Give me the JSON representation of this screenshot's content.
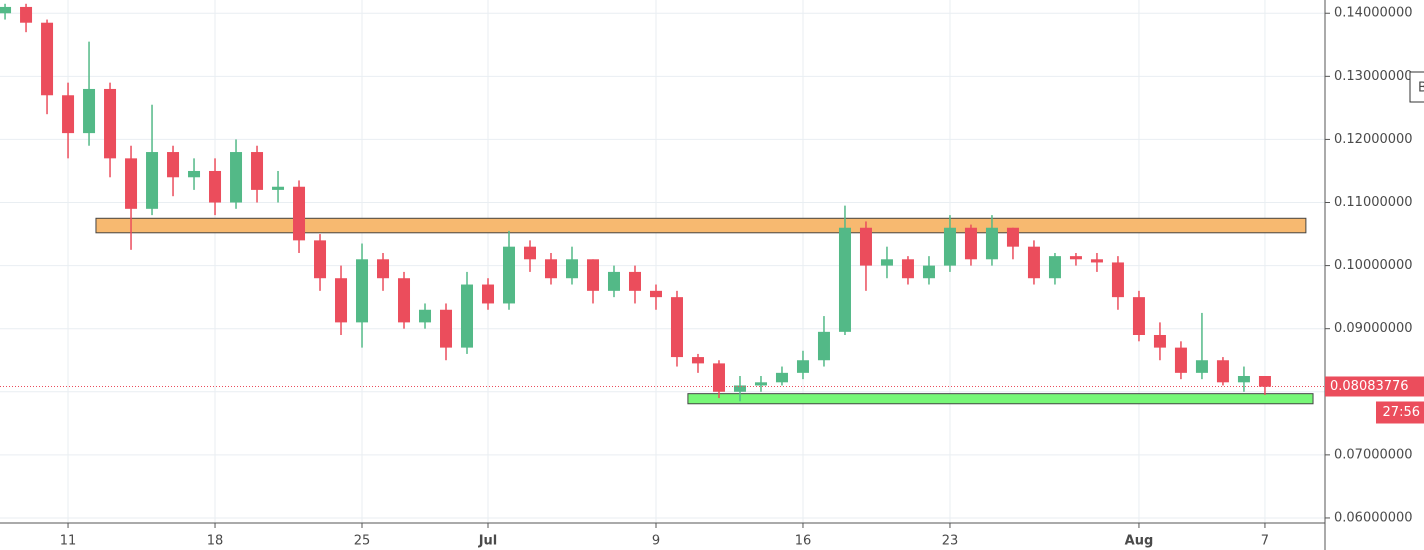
{
  "chart_data": {
    "type": "candlestick",
    "x": [
      -3,
      -2,
      -1,
      0,
      1,
      2,
      3,
      4,
      5,
      6,
      7,
      8,
      9,
      10,
      11,
      12,
      13,
      14,
      15,
      16,
      17,
      18,
      19,
      20,
      21,
      22,
      23,
      24,
      25,
      26,
      27,
      28,
      29,
      30,
      31,
      32,
      33,
      34,
      35,
      36,
      37,
      38,
      39,
      40,
      41,
      42,
      43,
      44,
      45,
      46,
      47,
      48,
      49,
      50,
      51,
      52,
      53,
      54,
      55,
      56,
      57
    ],
    "open": [
      0.14,
      0.141,
      0.1385,
      0.127,
      0.121,
      0.128,
      0.117,
      0.109,
      0.118,
      0.114,
      0.115,
      0.11,
      0.118,
      0.112,
      0.1125,
      0.104,
      0.098,
      0.091,
      0.101,
      0.098,
      0.091,
      0.093,
      0.087,
      0.097,
      0.094,
      0.103,
      0.101,
      0.098,
      0.101,
      0.096,
      0.099,
      0.096,
      0.095,
      0.0855,
      0.0845,
      0.08,
      0.081,
      0.0815,
      0.083,
      0.085,
      0.0895,
      0.106,
      0.1,
      0.101,
      0.098,
      0.1,
      0.106,
      0.101,
      0.106,
      0.103,
      0.098,
      0.1015,
      0.101,
      0.1005,
      0.095,
      0.089,
      0.087,
      0.083,
      0.085,
      0.0815,
      0.0825
    ],
    "high": [
      0.1415,
      0.1415,
      0.139,
      0.129,
      0.1355,
      0.129,
      0.119,
      0.1255,
      0.119,
      0.117,
      0.117,
      0.12,
      0.119,
      0.115,
      0.1135,
      0.105,
      0.1,
      0.1035,
      0.102,
      0.099,
      0.094,
      0.094,
      0.099,
      0.098,
      0.1055,
      0.104,
      0.102,
      0.103,
      0.101,
      0.1,
      0.1,
      0.097,
      0.096,
      0.086,
      0.085,
      0.0825,
      0.0825,
      0.084,
      0.0865,
      0.092,
      0.1095,
      0.107,
      0.103,
      0.1015,
      0.1015,
      0.108,
      0.1065,
      0.108,
      0.106,
      0.104,
      0.102,
      0.102,
      0.102,
      0.1015,
      0.096,
      0.091,
      0.088,
      0.0925,
      0.0855,
      0.084,
      0.0825
    ],
    "low": [
      0.139,
      0.137,
      0.124,
      0.117,
      0.119,
      0.114,
      0.1025,
      0.108,
      0.111,
      0.112,
      0.108,
      0.109,
      0.11,
      0.11,
      0.102,
      0.096,
      0.089,
      0.087,
      0.096,
      0.09,
      0.09,
      0.085,
      0.086,
      0.093,
      0.093,
      0.099,
      0.097,
      0.097,
      0.094,
      0.095,
      0.094,
      0.093,
      0.084,
      0.083,
      0.079,
      0.0785,
      0.08,
      0.081,
      0.082,
      0.084,
      0.089,
      0.096,
      0.098,
      0.097,
      0.097,
      0.099,
      0.1,
      0.1,
      0.101,
      0.097,
      0.097,
      0.1,
      0.099,
      0.093,
      0.088,
      0.085,
      0.082,
      0.082,
      0.081,
      0.08,
      0.0795
    ],
    "close": [
      0.141,
      0.1385,
      0.127,
      0.121,
      0.128,
      0.117,
      0.109,
      0.118,
      0.114,
      0.115,
      0.11,
      0.118,
      0.112,
      0.1125,
      0.104,
      0.098,
      0.091,
      0.101,
      0.098,
      0.091,
      0.093,
      0.087,
      0.097,
      0.094,
      0.103,
      0.101,
      0.098,
      0.101,
      0.096,
      0.099,
      0.096,
      0.095,
      0.0855,
      0.0845,
      0.08,
      0.081,
      0.0815,
      0.083,
      0.085,
      0.0895,
      0.106,
      0.1,
      0.101,
      0.098,
      0.1,
      0.106,
      0.101,
      0.106,
      0.103,
      0.098,
      0.1015,
      0.101,
      0.1005,
      0.095,
      0.089,
      0.087,
      0.083,
      0.085,
      0.0815,
      0.0825,
      0.0808
    ],
    "up_color": "#53b987",
    "down_color": "#eb4d5c",
    "xlim": [
      -3.24,
      59.86
    ],
    "ylim": [
      0.0592,
      0.1421
    ],
    "xticks": [
      {
        "value": 0,
        "label": "11"
      },
      {
        "value": 7,
        "label": "18"
      },
      {
        "value": 14,
        "label": "25"
      },
      {
        "value": 20,
        "label": "Jul"
      },
      {
        "value": 28,
        "label": "9"
      },
      {
        "value": 35,
        "label": "16"
      },
      {
        "value": 42,
        "label": "23"
      },
      {
        "value": 51,
        "label": "Aug"
      },
      {
        "value": 57,
        "label": "7"
      }
    ],
    "yticks": [
      {
        "value": 0.06,
        "label": "0.06000000"
      },
      {
        "value": 0.07,
        "label": "0.07000000"
      },
      {
        "value": 0.08,
        "label": "0.08000000"
      },
      {
        "value": 0.09,
        "label": "0.09000000"
      },
      {
        "value": 0.1,
        "label": "0.10000000"
      },
      {
        "value": 0.11,
        "label": "0.11000000"
      },
      {
        "value": 0.12,
        "label": "0.12000000"
      },
      {
        "value": 0.13,
        "label": "0.13000000"
      },
      {
        "value": 0.14,
        "label": "0.14000000"
      }
    ],
    "grid": true,
    "last_price": 0.08083776,
    "countdown": "27:56",
    "button_label": "B",
    "zones": [
      {
        "x": [
          1.33,
          58.95
        ],
        "y": [
          0.1052,
          0.1075
        ],
        "color": "#f7b970"
      },
      {
        "x": [
          29.52,
          59.29
        ],
        "y": [
          0.0781,
          0.0797
        ],
        "color": "#77f777"
      }
    ]
  }
}
